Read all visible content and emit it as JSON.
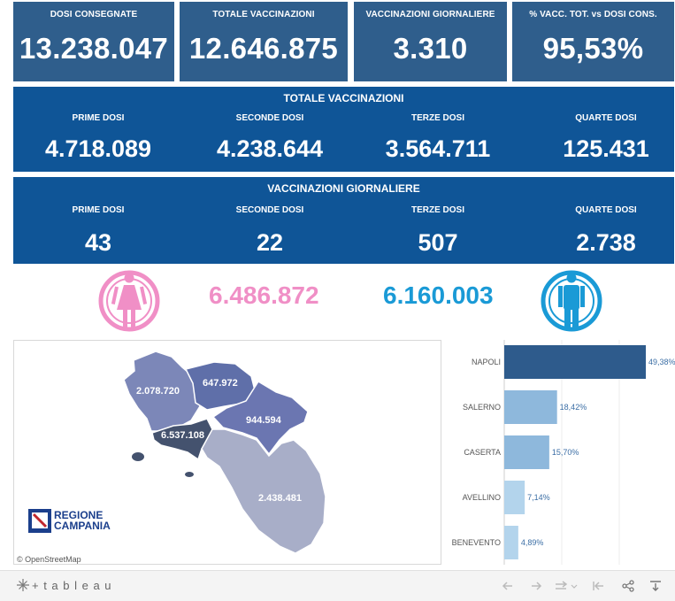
{
  "kpis": [
    {
      "label": "DOSI  CONSEGNATE",
      "value": "13.238.047"
    },
    {
      "label": "TOTALE VACCINAZIONI",
      "value": "12.646.875"
    },
    {
      "label": "VACCINAZIONI GIORNALIERE",
      "value": "3.310"
    },
    {
      "label": "% VACC. TOT. vs DOSI CONS.",
      "value": "95,53%"
    }
  ],
  "totale": {
    "title": "TOTALE VACCINAZIONI",
    "cells": [
      {
        "label": "PRIME DOSI",
        "value": "4.718.089"
      },
      {
        "label": "SECONDE DOSI",
        "value": "4.238.644"
      },
      {
        "label": "TERZE DOSI",
        "value": "3.564.711"
      },
      {
        "label": "QUARTE DOSI",
        "value": "125.431"
      }
    ]
  },
  "giornaliere": {
    "title": "VACCINAZIONI GIORNALIERE",
    "cells": [
      {
        "label": "PRIME DOSI",
        "value": "43"
      },
      {
        "label": "SECONDE DOSI",
        "value": "22"
      },
      {
        "label": "TERZE DOSI",
        "value": "507"
      },
      {
        "label": "QUARTE DOSI",
        "value": "2.738"
      }
    ]
  },
  "gender": {
    "female_value": "6.486.872",
    "male_value": "6.160.003",
    "female_color": "#f08fc6",
    "male_color": "#1a9ad6",
    "female_icon": "female-icon",
    "male_icon": "male-icon"
  },
  "map": {
    "labels": {
      "caserta": "2.078.720",
      "benevento": "647.972",
      "avellino": "944.594",
      "napoli": "6.537.108",
      "salerno": "2.438.481"
    },
    "logo_text_1": "REGIONE",
    "logo_text_2": "CAMPANIA",
    "attribution": "© OpenStreetMap"
  },
  "chart_data": {
    "type": "bar",
    "orientation": "horizontal",
    "categories": [
      "NAPOLI",
      "SALERNO",
      "CASERTA",
      "AVELLINO",
      "BENEVENTO"
    ],
    "values": [
      49.38,
      18.42,
      15.7,
      7.14,
      4.89
    ],
    "value_labels": [
      "49,38%",
      "18,42%",
      "15,70%",
      "7,14%",
      "4,89%"
    ],
    "colors": [
      "#2e5b8c",
      "#8eb8dc",
      "#8eb8dc",
      "#b3d4ec",
      "#b3d4ec"
    ]
  },
  "footer": {
    "brand": "+ t a b l e a u",
    "brand_icon": "tableau-logo-icon",
    "controls": [
      "undo-icon",
      "redo-icon",
      "revert-icon",
      "reset-icon",
      "share-icon",
      "download-icon"
    ]
  }
}
